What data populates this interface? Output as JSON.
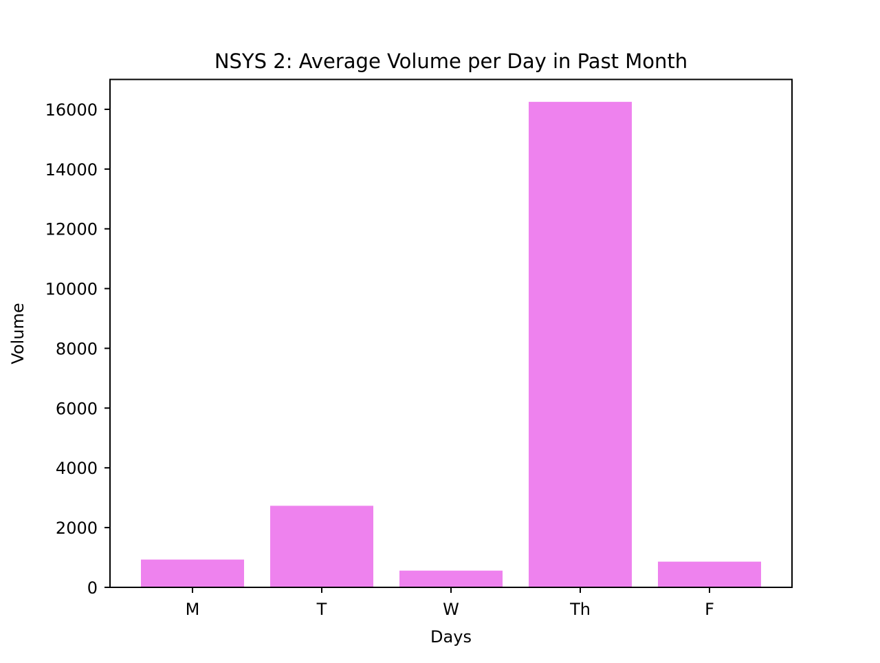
{
  "chart_data": {
    "type": "bar",
    "title": "NSYS 2: Average Volume per Day in Past Month",
    "xlabel": "Days",
    "ylabel": "Volume",
    "categories": [
      "M",
      "T",
      "W",
      "Th",
      "F"
    ],
    "values": [
      930,
      2730,
      560,
      16250,
      860
    ],
    "ylim": [
      0,
      17000
    ],
    "yticks": [
      0,
      2000,
      4000,
      6000,
      8000,
      10000,
      12000,
      14000,
      16000
    ],
    "bar_color": "#ee82ee",
    "grid": false,
    "legend": "none"
  }
}
